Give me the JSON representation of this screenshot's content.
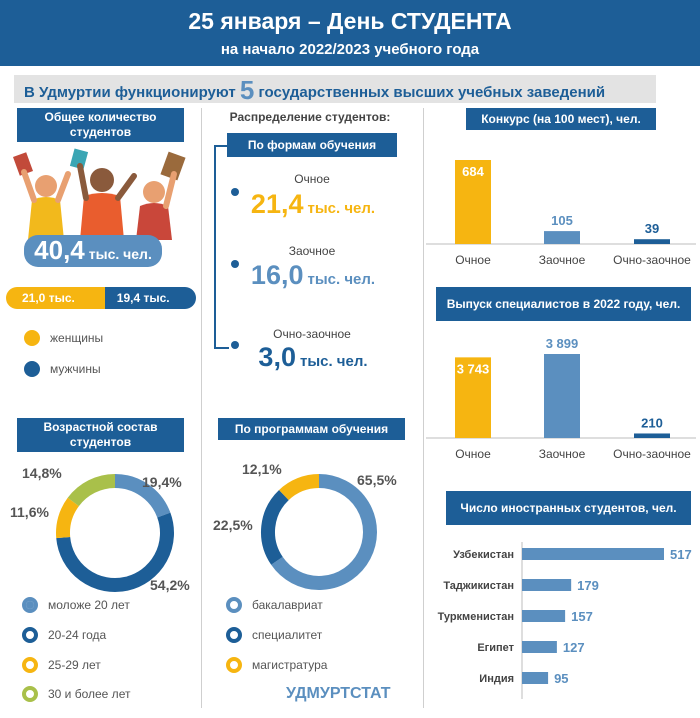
{
  "header": {
    "title": "25 января – День СТУДЕНТА",
    "subtitle": "на начало 2022/2023 учебного года"
  },
  "banner": {
    "prefix": "В Удмуртии функционируют",
    "number": "5",
    "suffix": "государственных высших учебных заведений"
  },
  "total": {
    "label": "Общее количество студентов",
    "value": "40,4",
    "unit": "тыс. чел.",
    "women_value": "21,0 тыс.",
    "men_value": "19,4 тыс.",
    "women_share": 0.52,
    "legend_women": "женщины",
    "legend_men": "мужчины"
  },
  "distribution": {
    "label": "Распределение студентов:",
    "forms_label": "По формам обучения",
    "forms": [
      {
        "name": "Очное",
        "value": "21,4",
        "unit": "тыс. чел.",
        "color": "#f6b511"
      },
      {
        "name": "Заочное",
        "value": "16,0",
        "unit": "тыс. чел.",
        "color": "#5b8fbf"
      },
      {
        "name": "Очно-заочное",
        "value": "3,0",
        "unit": "тыс. чел.",
        "color": "#1d5e97"
      }
    ]
  },
  "colors": {
    "dark_blue": "#1d5e97",
    "light_blue": "#5b8fbf",
    "yellow": "#f6b511",
    "green": "#a9c04a"
  },
  "chart_data": [
    {
      "type": "pie",
      "title": "Возрастной состав студентов",
      "labels": [
        "моложе 20 лет",
        "20-24 года",
        "25-29 лет",
        "30 и более лет"
      ],
      "values": [
        19.4,
        54.2,
        11.6,
        14.8
      ],
      "value_labels": [
        "19,4%",
        "54,2%",
        "11,6%",
        "14,8%"
      ],
      "colors": [
        "#5b8fbf",
        "#1d5e97",
        "#f6b511",
        "#a9c04a"
      ]
    },
    {
      "type": "pie",
      "title": "По программам обучения",
      "labels": [
        "бакалавриат",
        "специалитет",
        "магистратура"
      ],
      "values": [
        65.5,
        22.5,
        12.1
      ],
      "value_labels": [
        "65,5%",
        "22,5%",
        "12,1%"
      ],
      "colors": [
        "#5b8fbf",
        "#1d5e97",
        "#f6b511"
      ]
    },
    {
      "type": "bar",
      "title": "Конкурс (на 100 мест), чел.",
      "categories": [
        "Очное",
        "Заочное",
        "Очно-заочное"
      ],
      "values": [
        684,
        105,
        39
      ],
      "value_labels": [
        "684",
        "105",
        "39"
      ],
      "colors": [
        "#f6b511",
        "#5b8fbf",
        "#1d5e97"
      ],
      "ylim": [
        0,
        684
      ]
    },
    {
      "type": "bar",
      "title": "Выпуск специалистов в 2022 году, чел.",
      "categories": [
        "Очное",
        "Заочное",
        "Очно-заочное"
      ],
      "values": [
        3743,
        3899,
        210
      ],
      "value_labels": [
        "3 743",
        "3 899",
        "210"
      ],
      "colors": [
        "#f6b511",
        "#5b8fbf",
        "#1d5e97"
      ],
      "ylim": [
        0,
        3899
      ]
    },
    {
      "type": "bar",
      "orientation": "horizontal",
      "title": "Число иностранных студентов, чел.",
      "categories": [
        "Узбекистан",
        "Таджикистан",
        "Туркменистан",
        "Египет",
        "Индия"
      ],
      "values": [
        517,
        179,
        157,
        127,
        95
      ],
      "value_labels": [
        "517",
        "179",
        "157",
        "127",
        "95"
      ],
      "colors": [
        "#5b8fbf"
      ],
      "ylim": [
        0,
        517
      ]
    }
  ],
  "footer": {
    "brand": "УДМУРТСТАТ"
  }
}
